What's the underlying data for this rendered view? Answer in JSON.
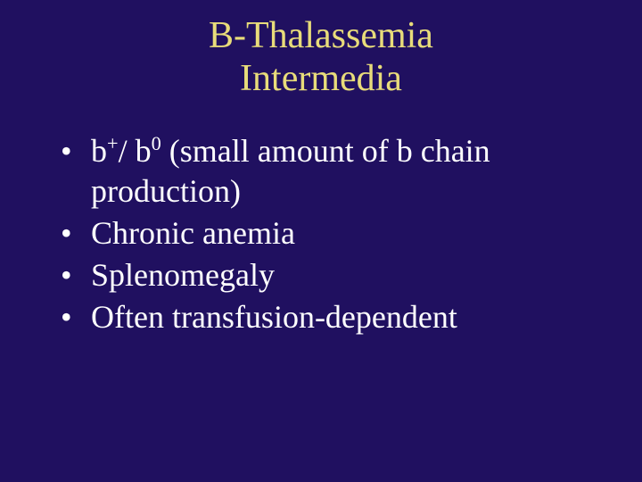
{
  "colors": {
    "background": "#201060",
    "title": "#e8dc7a",
    "body": "#ffffff"
  },
  "typography": {
    "title_fontsize": 42,
    "body_fontsize": 36,
    "font_family": "Times New Roman"
  },
  "title_line1": "B-Thalassemia",
  "title_line2": "Intermedia",
  "bullets": {
    "b0": {
      "pre": " ",
      "beta1": "b",
      "sup1": "+",
      "mid": "/ ",
      "beta2": "b",
      "sup2": "0",
      "post1": " (small amount of ",
      "beta3": "b",
      "post2": " chain production)"
    },
    "b1": "Chronic anemia",
    "b2": "Splenomegaly",
    "b3": "Often transfusion-dependent"
  }
}
